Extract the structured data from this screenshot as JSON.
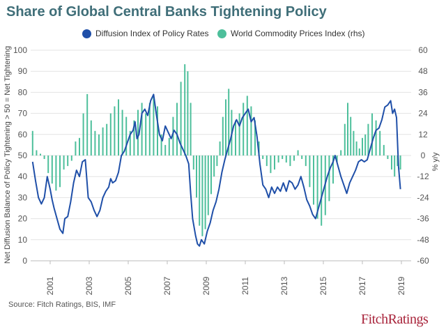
{
  "chart_data": {
    "type": "bar+line",
    "title": "Share of Global Central Banks Tightening Policy",
    "source": "Source: Fitch Ratings, BIS, IMF",
    "ylabel_left": "Net Diffusion Balance of Policy Tightening > 50 = Net Tightening",
    "ylabel_right": "% y/y",
    "left_axis": {
      "ylim": [
        0,
        100
      ],
      "ticks": [
        "0",
        "10",
        "20",
        "30",
        "40",
        "50",
        "60",
        "70",
        "80",
        "90",
        "100"
      ]
    },
    "right_axis": {
      "ylim": [
        -60,
        60
      ],
      "ticks": [
        "-60",
        "-48",
        "-36",
        "-24",
        "-12",
        "0",
        "12",
        "24",
        "36",
        "48",
        "60"
      ]
    },
    "x_axis": {
      "xlim": [
        2000,
        2019.5
      ],
      "ticks": [
        2001,
        2003,
        2005,
        2007,
        2009,
        2011,
        2013,
        2015,
        2017,
        2019
      ],
      "tick_labels": [
        "2001",
        "2003",
        "2005",
        "2007",
        "2009",
        "2011",
        "2013",
        "2015",
        "2017",
        "2019"
      ]
    },
    "series": [
      {
        "name": "Diffusion Index of Policy Rates",
        "type": "line",
        "axis": "left",
        "color": "#1f4fa8",
        "points": [
          [
            2000.1,
            47
          ],
          [
            2000.25,
            38
          ],
          [
            2000.4,
            30
          ],
          [
            2000.55,
            27
          ],
          [
            2000.7,
            30
          ],
          [
            2000.85,
            40
          ],
          [
            2001.0,
            34
          ],
          [
            2001.1,
            29
          ],
          [
            2001.2,
            25
          ],
          [
            2001.35,
            20
          ],
          [
            2001.5,
            15
          ],
          [
            2001.65,
            13
          ],
          [
            2001.75,
            20
          ],
          [
            2001.9,
            21
          ],
          [
            2002.05,
            28
          ],
          [
            2002.2,
            37
          ],
          [
            2002.35,
            43
          ],
          [
            2002.5,
            40
          ],
          [
            2002.65,
            47
          ],
          [
            2002.8,
            48
          ],
          [
            2002.95,
            30
          ],
          [
            2003.1,
            28
          ],
          [
            2003.25,
            24
          ],
          [
            2003.4,
            21
          ],
          [
            2003.55,
            24
          ],
          [
            2003.7,
            30
          ],
          [
            2003.85,
            33
          ],
          [
            2004.0,
            35
          ],
          [
            2004.1,
            39
          ],
          [
            2004.2,
            37
          ],
          [
            2004.35,
            38
          ],
          [
            2004.5,
            42
          ],
          [
            2004.65,
            50
          ],
          [
            2004.8,
            52
          ],
          [
            2004.95,
            56
          ],
          [
            2005.1,
            60
          ],
          [
            2005.25,
            62
          ],
          [
            2005.35,
            66
          ],
          [
            2005.45,
            58
          ],
          [
            2005.55,
            60
          ],
          [
            2005.7,
            70
          ],
          [
            2005.85,
            72
          ],
          [
            2006.0,
            69
          ],
          [
            2006.15,
            76
          ],
          [
            2006.3,
            79
          ],
          [
            2006.45,
            69
          ],
          [
            2006.6,
            60
          ],
          [
            2006.75,
            57
          ],
          [
            2006.9,
            64
          ],
          [
            2007.05,
            61
          ],
          [
            2007.2,
            58
          ],
          [
            2007.35,
            62
          ],
          [
            2007.5,
            60
          ],
          [
            2007.65,
            56
          ],
          [
            2007.8,
            53
          ],
          [
            2007.95,
            50
          ],
          [
            2008.1,
            46
          ],
          [
            2008.2,
            32
          ],
          [
            2008.3,
            20
          ],
          [
            2008.45,
            12
          ],
          [
            2008.55,
            8
          ],
          [
            2008.65,
            7
          ],
          [
            2008.75,
            10
          ],
          [
            2008.9,
            8
          ],
          [
            2009.05,
            14
          ],
          [
            2009.2,
            18
          ],
          [
            2009.35,
            24
          ],
          [
            2009.5,
            28
          ],
          [
            2009.65,
            34
          ],
          [
            2009.8,
            42
          ],
          [
            2009.95,
            48
          ],
          [
            2010.1,
            53
          ],
          [
            2010.25,
            58
          ],
          [
            2010.4,
            64
          ],
          [
            2010.55,
            67
          ],
          [
            2010.7,
            64
          ],
          [
            2010.85,
            68
          ],
          [
            2011.0,
            70
          ],
          [
            2011.15,
            72
          ],
          [
            2011.3,
            66
          ],
          [
            2011.45,
            68
          ],
          [
            2011.6,
            59
          ],
          [
            2011.75,
            46
          ],
          [
            2011.9,
            36
          ],
          [
            2012.05,
            34
          ],
          [
            2012.2,
            30
          ],
          [
            2012.35,
            35
          ],
          [
            2012.5,
            32
          ],
          [
            2012.65,
            35
          ],
          [
            2012.8,
            33
          ],
          [
            2012.95,
            37
          ],
          [
            2013.1,
            33
          ],
          [
            2013.25,
            38
          ],
          [
            2013.4,
            37
          ],
          [
            2013.55,
            34
          ],
          [
            2013.7,
            36
          ],
          [
            2013.85,
            40
          ],
          [
            2014.0,
            35
          ],
          [
            2014.15,
            29
          ],
          [
            2014.3,
            26
          ],
          [
            2014.45,
            22
          ],
          [
            2014.6,
            20
          ],
          [
            2014.75,
            25
          ],
          [
            2014.9,
            30
          ],
          [
            2015.05,
            35
          ],
          [
            2015.2,
            40
          ],
          [
            2015.35,
            44
          ],
          [
            2015.5,
            47
          ],
          [
            2015.6,
            50
          ],
          [
            2015.75,
            45
          ],
          [
            2015.9,
            40
          ],
          [
            2016.05,
            36
          ],
          [
            2016.2,
            32
          ],
          [
            2016.35,
            37
          ],
          [
            2016.5,
            40
          ],
          [
            2016.65,
            43
          ],
          [
            2016.8,
            47
          ],
          [
            2016.95,
            48
          ],
          [
            2017.1,
            47
          ],
          [
            2017.25,
            48
          ],
          [
            2017.4,
            53
          ],
          [
            2017.55,
            58
          ],
          [
            2017.7,
            62
          ],
          [
            2017.85,
            63
          ],
          [
            2018.0,
            67
          ],
          [
            2018.15,
            73
          ],
          [
            2018.3,
            74
          ],
          [
            2018.45,
            76
          ],
          [
            2018.55,
            70
          ],
          [
            2018.65,
            72
          ],
          [
            2018.75,
            68
          ],
          [
            2018.85,
            45
          ],
          [
            2018.95,
            34
          ]
        ]
      },
      {
        "name": "World Commodity Prices Index (rhs)",
        "type": "bar",
        "axis": "right",
        "color": "#4dbf9b",
        "points": [
          [
            2000.1,
            14
          ],
          [
            2000.3,
            3
          ],
          [
            2000.5,
            1
          ],
          [
            2000.7,
            -2
          ],
          [
            2000.9,
            -10
          ],
          [
            2001.1,
            -16
          ],
          [
            2001.3,
            -20
          ],
          [
            2001.5,
            -18
          ],
          [
            2001.7,
            -8
          ],
          [
            2001.9,
            -6
          ],
          [
            2002.1,
            -3
          ],
          [
            2002.3,
            8
          ],
          [
            2002.5,
            10
          ],
          [
            2002.7,
            24
          ],
          [
            2002.9,
            35
          ],
          [
            2003.1,
            20
          ],
          [
            2003.3,
            14
          ],
          [
            2003.5,
            12
          ],
          [
            2003.7,
            16
          ],
          [
            2003.9,
            18
          ],
          [
            2004.1,
            24
          ],
          [
            2004.3,
            28
          ],
          [
            2004.5,
            32
          ],
          [
            2004.7,
            26
          ],
          [
            2004.9,
            22
          ],
          [
            2005.1,
            14
          ],
          [
            2005.3,
            20
          ],
          [
            2005.5,
            26
          ],
          [
            2005.7,
            30
          ],
          [
            2005.9,
            24
          ],
          [
            2006.1,
            30
          ],
          [
            2006.3,
            34
          ],
          [
            2006.5,
            28
          ],
          [
            2006.7,
            12
          ],
          [
            2006.9,
            6
          ],
          [
            2007.1,
            10
          ],
          [
            2007.3,
            22
          ],
          [
            2007.5,
            30
          ],
          [
            2007.7,
            42
          ],
          [
            2007.9,
            52
          ],
          [
            2008.05,
            48
          ],
          [
            2008.2,
            30
          ],
          [
            2008.35,
            -8
          ],
          [
            2008.5,
            -24
          ],
          [
            2008.65,
            -40
          ],
          [
            2008.8,
            -46
          ],
          [
            2008.95,
            -42
          ],
          [
            2009.1,
            -34
          ],
          [
            2009.25,
            -22
          ],
          [
            2009.4,
            -12
          ],
          [
            2009.55,
            -6
          ],
          [
            2009.7,
            8
          ],
          [
            2009.85,
            22
          ],
          [
            2010.0,
            32
          ],
          [
            2010.15,
            38
          ],
          [
            2010.3,
            26
          ],
          [
            2010.5,
            20
          ],
          [
            2010.7,
            24
          ],
          [
            2010.9,
            30
          ],
          [
            2011.1,
            34
          ],
          [
            2011.3,
            28
          ],
          [
            2011.5,
            20
          ],
          [
            2011.7,
            8
          ],
          [
            2011.9,
            -2
          ],
          [
            2012.1,
            -6
          ],
          [
            2012.3,
            -10
          ],
          [
            2012.5,
            -8
          ],
          [
            2012.7,
            -4
          ],
          [
            2012.9,
            -2
          ],
          [
            2013.1,
            -4
          ],
          [
            2013.3,
            -6
          ],
          [
            2013.5,
            -3
          ],
          [
            2013.7,
            3
          ],
          [
            2013.9,
            -2
          ],
          [
            2014.1,
            -6
          ],
          [
            2014.3,
            -18
          ],
          [
            2014.5,
            -28
          ],
          [
            2014.7,
            -36
          ],
          [
            2014.9,
            -40
          ],
          [
            2015.1,
            -34
          ],
          [
            2015.3,
            -26
          ],
          [
            2015.5,
            -16
          ],
          [
            2015.7,
            -4
          ],
          [
            2015.9,
            3
          ],
          [
            2016.1,
            18
          ],
          [
            2016.25,
            30
          ],
          [
            2016.4,
            22
          ],
          [
            2016.55,
            14
          ],
          [
            2016.7,
            8
          ],
          [
            2016.85,
            4
          ],
          [
            2017.0,
            10
          ],
          [
            2017.15,
            12
          ],
          [
            2017.3,
            18
          ],
          [
            2017.5,
            24
          ],
          [
            2017.7,
            20
          ],
          [
            2017.9,
            14
          ],
          [
            2018.1,
            6
          ],
          [
            2018.3,
            -2
          ],
          [
            2018.5,
            -8
          ],
          [
            2018.65,
            -12
          ],
          [
            2018.8,
            -6
          ],
          [
            2018.95,
            -8
          ]
        ]
      }
    ]
  }
}
